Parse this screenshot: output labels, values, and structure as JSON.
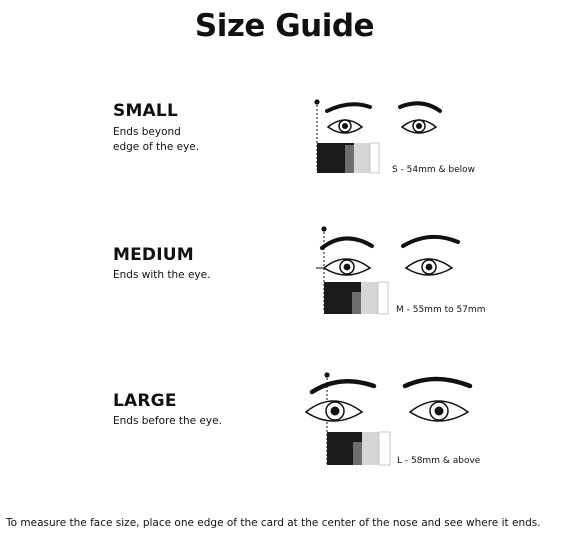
{
  "title": "Size Guide",
  "sizes": [
    {
      "label": "SMALL",
      "description_lines": [
        "Ends beyond",
        "edge of the eye."
      ],
      "range": "S - 54mm & below"
    },
    {
      "label": "MEDIUM",
      "description_lines": [
        "Ends with the eye."
      ],
      "range": "M - 55mm to 57mm"
    },
    {
      "label": "LARGE",
      "description_lines": [
        "Ends before the eye."
      ],
      "range": "L - 58mm & above"
    }
  ],
  "footer": "To measure the face size, place one edge of the card at the center of the nose and see where it ends.",
  "icons": [
    "eyes-card-illustration-small",
    "eyes-card-illustration-medium",
    "eyes-card-illustration-large"
  ]
}
